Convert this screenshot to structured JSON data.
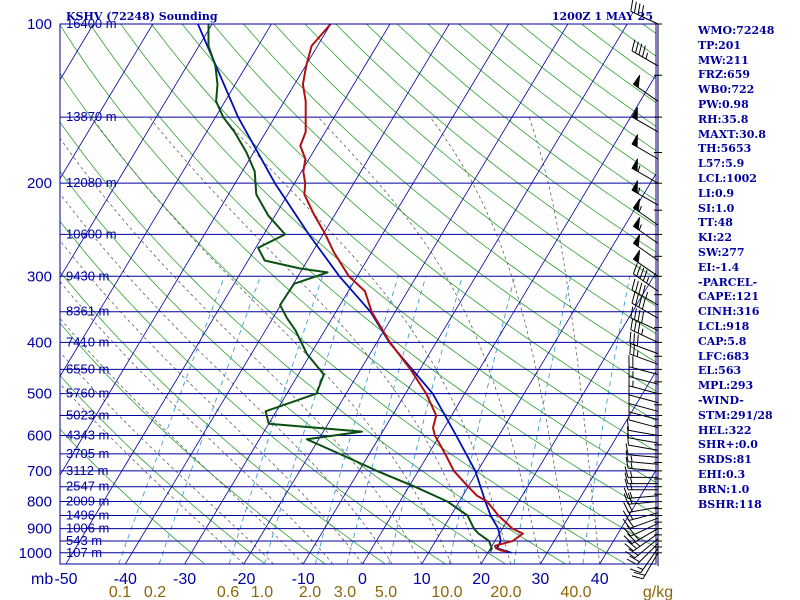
{
  "header": {
    "station": "KSHV (72248) Sounding",
    "time": "1200Z  1 MAY 25"
  },
  "side_panel": [
    "WMO:72248",
    "TP:201",
    "MW:211",
    "FRZ:659",
    "WB0:722",
    "PW:0.98",
    "RH:35.8",
    "MAXT:30.8",
    "TH:5653",
    "L57:5.9",
    "LCL:1002",
    "LI:0.9",
    "SI:1.0",
    "TT:48",
    "KI:22",
    "SW:277",
    "EI:-1.4",
    "-PARCEL-",
    "CAPE:121",
    "CINH:316",
    "LCL:918",
    "CAP:5.8",
    "LFC:683",
    "EL:563",
    "MPL:293",
    "-WIND-",
    "STM:291/28",
    "HEL:322",
    "SHR+:0.0",
    "SRDS:81",
    "EHI:0.3",
    "BRN:1.0",
    "BSHR:118"
  ],
  "colors": {
    "text": "#0000a0",
    "isobar": "#0000a0",
    "temperature": "#b01010",
    "dewpoint": "#0a5010",
    "parcel": "#0010b0",
    "dry_adiabat": "#30a030",
    "moist_adiabat": "#606060",
    "mixing_ratio": "#40a0d0",
    "mixing_ratio_label": "#8b6508"
  },
  "chart_data": {
    "type": "skew-t",
    "title": "KSHV (72248) Sounding",
    "x_unit_label": "mb",
    "mixing_ratio_unit_label": "g/kg",
    "pressure_levels": [
      100,
      200,
      300,
      400,
      500,
      600,
      700,
      800,
      900,
      1000
    ],
    "pressure_labels": [
      "100",
      "200",
      "300",
      "400",
      "500",
      "600",
      "700",
      "800",
      "900",
      "1000"
    ],
    "temperature_ticks": [
      -50,
      -40,
      -30,
      -20,
      -10,
      0,
      10,
      20,
      30,
      40
    ],
    "temperature_tick_labels": [
      "-50",
      "-40",
      "-30",
      "-20",
      "-10",
      "0",
      "10",
      "20",
      "30",
      "40"
    ],
    "mixing_ratio_labels": [
      "0.1",
      "0.2",
      "0.6",
      "1.0",
      "2.0",
      "3.0",
      "5.0",
      "10.0",
      "20.0",
      "40.0"
    ],
    "mixing_ratio_values": [
      0.1,
      0.2,
      0.6,
      1.0,
      2.0,
      3.0,
      5.0,
      10.0,
      20.0,
      40.0
    ],
    "heights": [
      {
        "p": 100,
        "label": "16400 m"
      },
      {
        "p": 150,
        "label": "13870 m"
      },
      {
        "p": 200,
        "label": "12080 m"
      },
      {
        "p": 250,
        "label": "10600 m"
      },
      {
        "p": 300,
        "label": "9430 m"
      },
      {
        "p": 350,
        "label": "8361 m"
      },
      {
        "p": 400,
        "label": "7410 m"
      },
      {
        "p": 450,
        "label": "6550 m"
      },
      {
        "p": 500,
        "label": "5760 m"
      },
      {
        "p": 550,
        "label": "5023 m"
      },
      {
        "p": 600,
        "label": "4343 m"
      },
      {
        "p": 650,
        "label": "3705 m"
      },
      {
        "p": 700,
        "label": "3112 m"
      },
      {
        "p": 750,
        "label": "2547 m"
      },
      {
        "p": 800,
        "label": "2009 m"
      },
      {
        "p": 850,
        "label": "1496 m"
      },
      {
        "p": 900,
        "label": "1006 m"
      },
      {
        "p": 950,
        "label": "543 m"
      },
      {
        "p": 1000,
        "label": "107 m"
      }
    ],
    "temperature_profile": [
      {
        "p": 995,
        "t": 23.2
      },
      {
        "p": 990,
        "t": 22.0
      },
      {
        "p": 980,
        "t": 20.9
      },
      {
        "p": 970,
        "t": 20.5
      },
      {
        "p": 950,
        "t": 23.0
      },
      {
        "p": 920,
        "t": 24.0
      },
      {
        "p": 900,
        "t": 21.7
      },
      {
        "p": 850,
        "t": 18.0
      },
      {
        "p": 800,
        "t": 14.7
      },
      {
        "p": 780,
        "t": 12.4
      },
      {
        "p": 750,
        "t": 10.0
      },
      {
        "p": 700,
        "t": 6.0
      },
      {
        "p": 650,
        "t": 2.8
      },
      {
        "p": 600,
        "t": -0.8
      },
      {
        "p": 580,
        "t": -1.9
      },
      {
        "p": 550,
        "t": -2.6
      },
      {
        "p": 500,
        "t": -6.5
      },
      {
        "p": 450,
        "t": -11.6
      },
      {
        "p": 400,
        "t": -17.8
      },
      {
        "p": 350,
        "t": -24.0
      },
      {
        "p": 320,
        "t": -27.2
      },
      {
        "p": 300,
        "t": -31.4
      },
      {
        "p": 270,
        "t": -36.4
      },
      {
        "p": 250,
        "t": -39.6
      },
      {
        "p": 230,
        "t": -43.4
      },
      {
        "p": 210,
        "t": -47.2
      },
      {
        "p": 200,
        "t": -48.2
      },
      {
        "p": 190,
        "t": -49.7
      },
      {
        "p": 180,
        "t": -50.6
      },
      {
        "p": 170,
        "t": -52.8
      },
      {
        "p": 160,
        "t": -53.3
      },
      {
        "p": 150,
        "t": -54.8
      },
      {
        "p": 140,
        "t": -56.4
      },
      {
        "p": 130,
        "t": -58.6
      },
      {
        "p": 120,
        "t": -59.9
      },
      {
        "p": 110,
        "t": -61.0
      },
      {
        "p": 100,
        "t": -60.0
      }
    ],
    "dewpoint_profile": [
      {
        "p": 995,
        "td": 20.3
      },
      {
        "p": 980,
        "td": 20.2
      },
      {
        "p": 950,
        "td": 19.0
      },
      {
        "p": 920,
        "td": 16.5
      },
      {
        "p": 900,
        "td": 15.2
      },
      {
        "p": 850,
        "td": 12.8
      },
      {
        "p": 800,
        "td": 8.0
      },
      {
        "p": 750,
        "td": 1.0
      },
      {
        "p": 700,
        "td": -7.0
      },
      {
        "p": 650,
        "td": -15.0
      },
      {
        "p": 610,
        "td": -22.0
      },
      {
        "p": 590,
        "td": -13.5
      },
      {
        "p": 570,
        "td": -30.0
      },
      {
        "p": 540,
        "td": -31.8
      },
      {
        "p": 500,
        "td": -25.0
      },
      {
        "p": 460,
        "td": -25.7
      },
      {
        "p": 420,
        "td": -30.7
      },
      {
        "p": 380,
        "td": -34.9
      },
      {
        "p": 360,
        "td": -37.6
      },
      {
        "p": 340,
        "td": -40.1
      },
      {
        "p": 310,
        "td": -39.9
      },
      {
        "p": 295,
        "td": -35.4
      },
      {
        "p": 290,
        "td": -40.4
      },
      {
        "p": 280,
        "td": -47.2
      },
      {
        "p": 265,
        "td": -49.6
      },
      {
        "p": 250,
        "td": -46.4
      },
      {
        "p": 230,
        "td": -51.2
      },
      {
        "p": 210,
        "td": -55.3
      },
      {
        "p": 190,
        "td": -57.9
      },
      {
        "p": 175,
        "td": -61.2
      },
      {
        "p": 160,
        "td": -65.3
      },
      {
        "p": 150,
        "td": -68.7
      },
      {
        "p": 140,
        "td": -71.5
      },
      {
        "p": 130,
        "td": -73.0
      },
      {
        "p": 120,
        "td": -75.2
      },
      {
        "p": 110,
        "td": -78.4
      },
      {
        "p": 100,
        "td": -80.6
      }
    ],
    "parcel_profile": [
      {
        "p": 1000,
        "t": 24.0
      },
      {
        "p": 980,
        "t": 21.1
      },
      {
        "p": 950,
        "t": 21.0
      },
      {
        "p": 900,
        "t": 19.3
      },
      {
        "p": 850,
        "t": 16.7
      },
      {
        "p": 800,
        "t": 14.4
      },
      {
        "p": 700,
        "t": 9.6
      },
      {
        "p": 600,
        "t": 2.8
      },
      {
        "p": 500,
        "t": -5.4
      },
      {
        "p": 400,
        "t": -17.9
      },
      {
        "p": 350,
        "t": -24.2
      },
      {
        "p": 300,
        "t": -33.0
      },
      {
        "p": 250,
        "t": -42.4
      },
      {
        "p": 200,
        "t": -53.3
      },
      {
        "p": 150,
        "t": -66.2
      },
      {
        "p": 100,
        "t": -82.4
      }
    ],
    "wind_barbs": [
      {
        "p": 1000,
        "dir": 210,
        "spd": 20
      },
      {
        "p": 980,
        "dir": 215,
        "spd": 18
      },
      {
        "p": 960,
        "dir": 225,
        "spd": 20
      },
      {
        "p": 940,
        "dir": 230,
        "spd": 20
      },
      {
        "p": 920,
        "dir": 235,
        "spd": 25
      },
      {
        "p": 900,
        "dir": 240,
        "spd": 25
      },
      {
        "p": 880,
        "dir": 245,
        "spd": 20
      },
      {
        "p": 860,
        "dir": 250,
        "spd": 20
      },
      {
        "p": 840,
        "dir": 255,
        "spd": 20
      },
      {
        "p": 820,
        "dir": 260,
        "spd": 20
      },
      {
        "p": 800,
        "dir": 265,
        "spd": 20
      },
      {
        "p": 780,
        "dir": 265,
        "spd": 15
      },
      {
        "p": 760,
        "dir": 270,
        "spd": 15
      },
      {
        "p": 740,
        "dir": 270,
        "spd": 15
      },
      {
        "p": 720,
        "dir": 270,
        "spd": 15
      },
      {
        "p": 700,
        "dir": 275,
        "spd": 15
      },
      {
        "p": 680,
        "dir": 275,
        "spd": 15
      },
      {
        "p": 660,
        "dir": 275,
        "spd": 10
      },
      {
        "p": 640,
        "dir": 280,
        "spd": 10
      },
      {
        "p": 620,
        "dir": 280,
        "spd": 10
      },
      {
        "p": 600,
        "dir": 280,
        "spd": 10
      },
      {
        "p": 580,
        "dir": 285,
        "spd": 10
      },
      {
        "p": 560,
        "dir": 285,
        "spd": 10
      },
      {
        "p": 540,
        "dir": 285,
        "spd": 10
      },
      {
        "p": 520,
        "dir": 285,
        "spd": 10
      },
      {
        "p": 500,
        "dir": 285,
        "spd": 15
      },
      {
        "p": 480,
        "dir": 285,
        "spd": 15
      },
      {
        "p": 460,
        "dir": 285,
        "spd": 20
      },
      {
        "p": 440,
        "dir": 290,
        "spd": 25
      },
      {
        "p": 420,
        "dir": 290,
        "spd": 30
      },
      {
        "p": 400,
        "dir": 295,
        "spd": 35
      },
      {
        "p": 380,
        "dir": 295,
        "spd": 40
      },
      {
        "p": 360,
        "dir": 300,
        "spd": 40
      },
      {
        "p": 340,
        "dir": 300,
        "spd": 45
      },
      {
        "p": 320,
        "dir": 305,
        "spd": 45
      },
      {
        "p": 300,
        "dir": 305,
        "spd": 50
      },
      {
        "p": 280,
        "dir": 305,
        "spd": 50
      },
      {
        "p": 260,
        "dir": 305,
        "spd": 55
      },
      {
        "p": 240,
        "dir": 305,
        "spd": 55
      },
      {
        "p": 220,
        "dir": 300,
        "spd": 55
      },
      {
        "p": 200,
        "dir": 300,
        "spd": 55
      },
      {
        "p": 180,
        "dir": 300,
        "spd": 50
      },
      {
        "p": 160,
        "dir": 300,
        "spd": 50
      },
      {
        "p": 140,
        "dir": 305,
        "spd": 50
      },
      {
        "p": 120,
        "dir": 300,
        "spd": 45
      },
      {
        "p": 100,
        "dir": 295,
        "spd": 40
      }
    ]
  }
}
